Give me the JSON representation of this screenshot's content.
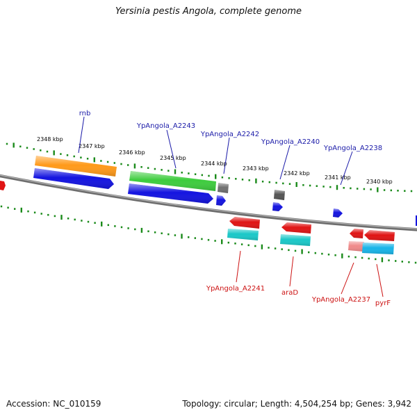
{
  "title": "Yersinia pestis Angola, complete genome",
  "footer": {
    "accession": "Accession: NC_010159",
    "info": "Topology: circular; Length: 4,504,254 bp; Genes: 3,942"
  },
  "colors": {
    "backbone": "#8a8a8a",
    "tick": "#1a8a1a",
    "label_top": "#1a1aa8",
    "label_bottom": "#cc1111"
  },
  "kbp_ticks": [
    "2348 kbp",
    "2347 kbp",
    "2346 kbp",
    "2345 kbp",
    "2344 kbp",
    "2343 kbp",
    "2342 kbp",
    "2341 kbp",
    "2340 kbp"
  ],
  "top_labels": [
    "rnb",
    "YpAngola_A2243",
    "YpAngola_A2242",
    "YpAngola_A2240",
    "YpAngola_A2238"
  ],
  "bottom_labels": [
    "YpAngola_A2241",
    "araD",
    "YpAngola_A2237",
    "pyrF"
  ],
  "features": [
    {
      "name": "rnb",
      "color": "#ff9a1a",
      "strand": "forward"
    },
    {
      "name": "rnb-cds",
      "color": "#1414e0",
      "strand": "forward"
    },
    {
      "name": "YpAngola_A2243",
      "color": "#3ecc3e",
      "strand": "forward"
    },
    {
      "name": "YpAngola_A2243-cds",
      "color": "#1414e0",
      "strand": "forward"
    },
    {
      "name": "YpAngola_A2242",
      "color": "#707070",
      "strand": "forward"
    },
    {
      "name": "YpAngola_A2242-cds",
      "color": "#1414e0",
      "strand": "forward"
    },
    {
      "name": "YpAngola_A2240",
      "color": "#555555",
      "strand": "forward"
    },
    {
      "name": "YpAngola_A2240-cds",
      "color": "#1414e0",
      "strand": "forward"
    },
    {
      "name": "YpAngola_A2238-cds",
      "color": "#1414e0",
      "strand": "forward"
    },
    {
      "name": "YpAngola_A2241",
      "color": "#e01414",
      "strand": "reverse"
    },
    {
      "name": "YpAngola_A2241-cds",
      "color": "#1ac8c8",
      "strand": "reverse"
    },
    {
      "name": "araD",
      "color": "#e01414",
      "strand": "reverse"
    },
    {
      "name": "araD-cds",
      "color": "#1ac8c8",
      "strand": "reverse"
    },
    {
      "name": "YpAngola_A2237",
      "color": "#e01414",
      "strand": "reverse"
    },
    {
      "name": "YpAngola_A2237-cds",
      "color": "#f08a8a",
      "strand": "reverse"
    },
    {
      "name": "pyrF",
      "color": "#e01414",
      "strand": "reverse"
    },
    {
      "name": "pyrF-cds",
      "color": "#18b4e8",
      "strand": "reverse"
    }
  ]
}
